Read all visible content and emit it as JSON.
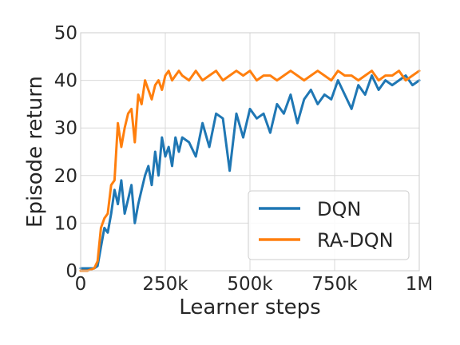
{
  "chart_data": {
    "type": "line",
    "title": "",
    "xlabel": "Learner steps",
    "ylabel": "Episode return",
    "xlim": [
      0,
      1000000
    ],
    "ylim": [
      0,
      50
    ],
    "grid": true,
    "legend_position": "bottom-right",
    "x_ticks": [
      {
        "value": 0,
        "label": "0"
      },
      {
        "value": 250000,
        "label": "250k"
      },
      {
        "value": 500000,
        "label": "500k"
      },
      {
        "value": 750000,
        "label": "750k"
      },
      {
        "value": 1000000,
        "label": "1M"
      }
    ],
    "y_ticks": [
      {
        "value": 0,
        "label": "0"
      },
      {
        "value": 10,
        "label": "10"
      },
      {
        "value": 20,
        "label": "20"
      },
      {
        "value": 30,
        "label": "30"
      },
      {
        "value": 40,
        "label": "40"
      },
      {
        "value": 50,
        "label": "50"
      }
    ],
    "x": [
      0,
      20000,
      40000,
      50000,
      60000,
      70000,
      80000,
      90000,
      100000,
      110000,
      120000,
      130000,
      140000,
      150000,
      160000,
      170000,
      180000,
      190000,
      200000,
      210000,
      220000,
      230000,
      240000,
      250000,
      260000,
      270000,
      280000,
      290000,
      300000,
      320000,
      340000,
      360000,
      380000,
      400000,
      420000,
      440000,
      460000,
      480000,
      500000,
      520000,
      540000,
      560000,
      580000,
      600000,
      620000,
      640000,
      660000,
      680000,
      700000,
      720000,
      740000,
      760000,
      780000,
      800000,
      820000,
      840000,
      860000,
      880000,
      900000,
      920000,
      940000,
      960000,
      980000,
      1000000
    ],
    "series": [
      {
        "name": "DQN",
        "color": "#1f77b4",
        "values": [
          0.5,
          0.5,
          0.5,
          1,
          5,
          9,
          8,
          12,
          17,
          14,
          19,
          12,
          15,
          18,
          10,
          14,
          17,
          20,
          22,
          18,
          25,
          20,
          28,
          24,
          26,
          22,
          28,
          25,
          28,
          27,
          24,
          31,
          26,
          33,
          32,
          21,
          33,
          28,
          34,
          32,
          33,
          29,
          35,
          33,
          37,
          31,
          36,
          38,
          35,
          37,
          36,
          40,
          37,
          34,
          39,
          37,
          41,
          38,
          40,
          39,
          40,
          41,
          39,
          40
        ]
      },
      {
        "name": "RA-DQN",
        "color": "#ff7f0e",
        "values": [
          0,
          0,
          0.5,
          2,
          9,
          11,
          12,
          18,
          19,
          31,
          26,
          30,
          33,
          34,
          27,
          37,
          35,
          40,
          38,
          36,
          39,
          40,
          38,
          41,
          42,
          40,
          41,
          42,
          41,
          40,
          42,
          40,
          41,
          42,
          40,
          41,
          42,
          41,
          42,
          40,
          41,
          41,
          40,
          41,
          42,
          41,
          40,
          41,
          42,
          41,
          40,
          42,
          41,
          41,
          40,
          41,
          42,
          40,
          41,
          41,
          42,
          40,
          41,
          42
        ]
      }
    ]
  }
}
